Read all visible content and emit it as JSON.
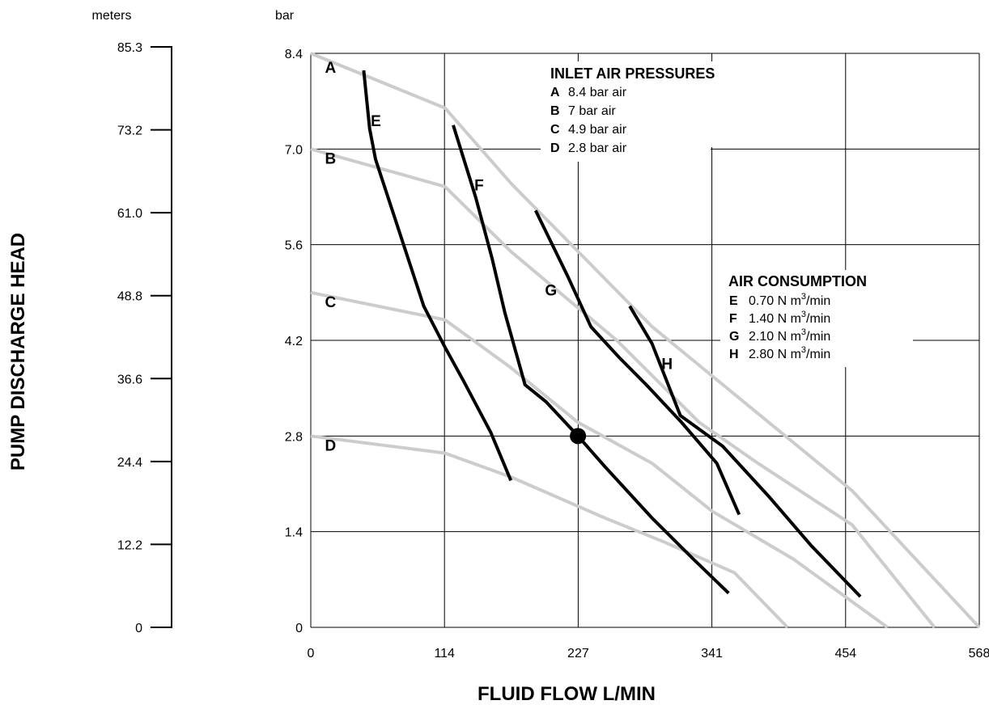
{
  "chart_data": {
    "type": "line",
    "xlabel": "FLUID FLOW L/MIN",
    "ylabel": "PUMP DISCHARGE HEAD",
    "y_unit": "bar",
    "y2_unit": "meters",
    "xlim": [
      0,
      568
    ],
    "ylim": [
      0,
      8.4
    ],
    "x_ticks": [
      "0",
      "114",
      "227",
      "341",
      "454",
      "568"
    ],
    "y_ticks": [
      "0",
      "1.4",
      "2.8",
      "4.2",
      "5.6",
      "7.0",
      "8.4"
    ],
    "y2_ticks": [
      "0",
      "12.2",
      "24.4",
      "36.6",
      "48.8",
      "61.0",
      "73.2",
      "85.3"
    ],
    "grid": true,
    "pressure_legend": {
      "title": "INLET AIR PRESSURES",
      "items": [
        {
          "key": "A",
          "text": "8.4 bar air"
        },
        {
          "key": "B",
          "text": "7 bar air"
        },
        {
          "key": "C",
          "text": "4.9 bar air"
        },
        {
          "key": "D",
          "text": "2.8 bar air"
        }
      ]
    },
    "consumption_legend": {
      "title": "AIR CONSUMPTION",
      "items": [
        {
          "key": "E",
          "text": "0.70 N m",
          "sup": "3",
          "tail": "/min"
        },
        {
          "key": "F",
          "text": "1.40 N m",
          "sup": "3",
          "tail": "/min"
        },
        {
          "key": "G",
          "text": "2.10 N m",
          "sup": "3",
          "tail": "/min"
        },
        {
          "key": "H",
          "text": "2.80 N m",
          "sup": "3",
          "tail": "/min"
        }
      ]
    },
    "pressure_curves": [
      {
        "name": "A",
        "color": "#cccccc",
        "points": [
          [
            0,
            8.4
          ],
          [
            114,
            7.6
          ],
          [
            170,
            6.5
          ],
          [
            290,
            4.4
          ],
          [
            460,
            2.0
          ],
          [
            568,
            0
          ]
        ]
      },
      {
        "name": "B",
        "color": "#cccccc",
        "points": [
          [
            0,
            7.0
          ],
          [
            114,
            6.45
          ],
          [
            170,
            5.5
          ],
          [
            260,
            4.2
          ],
          [
            330,
            3.0
          ],
          [
            380,
            2.4
          ],
          [
            460,
            1.5
          ],
          [
            530,
            0
          ]
        ]
      },
      {
        "name": "C",
        "color": "#cccccc",
        "points": [
          [
            0,
            4.9
          ],
          [
            114,
            4.5
          ],
          [
            170,
            3.8
          ],
          [
            227,
            3.0
          ],
          [
            290,
            2.4
          ],
          [
            341,
            1.7
          ],
          [
            410,
            1.0
          ],
          [
            490,
            0
          ]
        ]
      },
      {
        "name": "D",
        "color": "#cccccc",
        "points": [
          [
            0,
            2.8
          ],
          [
            114,
            2.55
          ],
          [
            170,
            2.2
          ],
          [
            250,
            1.6
          ],
          [
            300,
            1.25
          ],
          [
            360,
            0.8
          ],
          [
            405,
            0
          ]
        ]
      }
    ],
    "consumption_curves": [
      {
        "name": "E",
        "color": "#000000",
        "points": [
          [
            45,
            8.15
          ],
          [
            50,
            7.3
          ],
          [
            55,
            6.85
          ],
          [
            96,
            4.7
          ],
          [
            114,
            4.1
          ],
          [
            130,
            3.6
          ],
          [
            153,
            2.85
          ],
          [
            170,
            2.15
          ]
        ]
      },
      {
        "name": "F",
        "color": "#000000",
        "points": [
          [
            121,
            7.35
          ],
          [
            140,
            6.3
          ],
          [
            154,
            5.4
          ],
          [
            165,
            4.6
          ],
          [
            182,
            3.55
          ],
          [
            200,
            3.3
          ],
          [
            227,
            2.8
          ],
          [
            250,
            2.35
          ],
          [
            290,
            1.6
          ],
          [
            325,
            1.0
          ],
          [
            355,
            0.5
          ]
        ]
      },
      {
        "name": "G",
        "color": "#000000",
        "points": [
          [
            191,
            6.1
          ],
          [
            218,
            5.15
          ],
          [
            238,
            4.4
          ],
          [
            262,
            3.95
          ],
          [
            285,
            3.55
          ],
          [
            315,
            3.0
          ],
          [
            345,
            2.4
          ],
          [
            364,
            1.65
          ]
        ]
      },
      {
        "name": "H",
        "color": "#000000",
        "points": [
          [
            271,
            4.7
          ],
          [
            290,
            4.15
          ],
          [
            314,
            3.1
          ],
          [
            350,
            2.65
          ],
          [
            390,
            1.9
          ],
          [
            425,
            1.2
          ],
          [
            467,
            0.45
          ]
        ]
      }
    ],
    "label_positions": [
      {
        "name": "A",
        "x": 12,
        "y": 8.2
      },
      {
        "name": "B",
        "x": 12,
        "y": 6.87
      },
      {
        "name": "C",
        "x": 12,
        "y": 4.77
      },
      {
        "name": "D",
        "x": 12,
        "y": 2.67
      },
      {
        "name": "E",
        "x": 51,
        "y": 7.42
      },
      {
        "name": "F",
        "x": 139,
        "y": 6.48
      },
      {
        "name": "G",
        "x": 199,
        "y": 4.94
      },
      {
        "name": "H",
        "x": 298,
        "y": 3.86
      }
    ],
    "operating_point": {
      "x": 227,
      "y": 2.8
    }
  }
}
